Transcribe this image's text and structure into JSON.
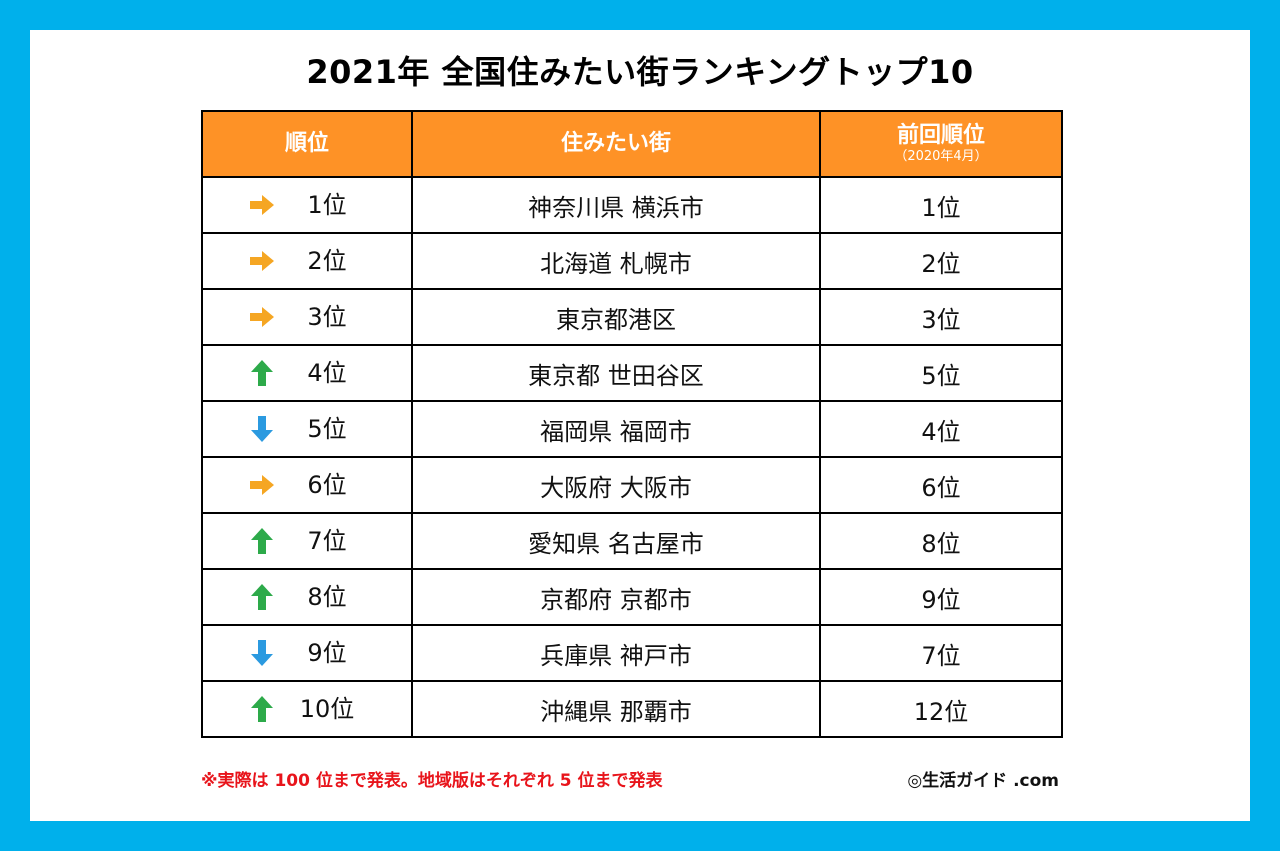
{
  "title": "2021年 全国住みたい街ランキングトップ10",
  "table": {
    "headers": {
      "rank": "順位",
      "city": "住みたい街",
      "prev": "前回順位",
      "prev_sub": "（2020年4月）"
    },
    "rows": [
      {
        "trend": "same",
        "trend_icon": "right-arrow-icon",
        "rank": "1位",
        "city": "神奈川県 横浜市",
        "prev": "1位"
      },
      {
        "trend": "same",
        "trend_icon": "right-arrow-icon",
        "rank": "2位",
        "city": "北海道 札幌市",
        "prev": "2位"
      },
      {
        "trend": "same",
        "trend_icon": "right-arrow-icon",
        "rank": "3位",
        "city": "東京都港区",
        "prev": "3位"
      },
      {
        "trend": "up",
        "trend_icon": "up-arrow-icon",
        "rank": "4位",
        "city": "東京都 世田谷区",
        "prev": "5位"
      },
      {
        "trend": "down",
        "trend_icon": "down-arrow-icon",
        "rank": "5位",
        "city": "福岡県 福岡市",
        "prev": "4位"
      },
      {
        "trend": "same",
        "trend_icon": "right-arrow-icon",
        "rank": "6位",
        "city": "大阪府 大阪市",
        "prev": "6位"
      },
      {
        "trend": "up",
        "trend_icon": "up-arrow-icon",
        "rank": "7位",
        "city": "愛知県 名古屋市",
        "prev": "8位"
      },
      {
        "trend": "up",
        "trend_icon": "up-arrow-icon",
        "rank": "8位",
        "city": "京都府 京都市",
        "prev": "9位"
      },
      {
        "trend": "down",
        "trend_icon": "down-arrow-icon",
        "rank": "9位",
        "city": "兵庫県 神戸市",
        "prev": "7位"
      },
      {
        "trend": "up",
        "trend_icon": "up-arrow-icon",
        "rank": "10位",
        "city": "沖縄県 那覇市",
        "prev": "12位"
      }
    ]
  },
  "footnote": "※実際は 100 位まで発表。地域版はそれぞれ 5 位まで発表",
  "credit": "◎生活ガイド .com",
  "colors": {
    "background": "#00b0eb",
    "header": "#fe9226",
    "arrow_same": "#f5a623",
    "arrow_up": "#2daa4a",
    "arrow_down": "#2b9ae0",
    "footnote": "#e8141b"
  }
}
